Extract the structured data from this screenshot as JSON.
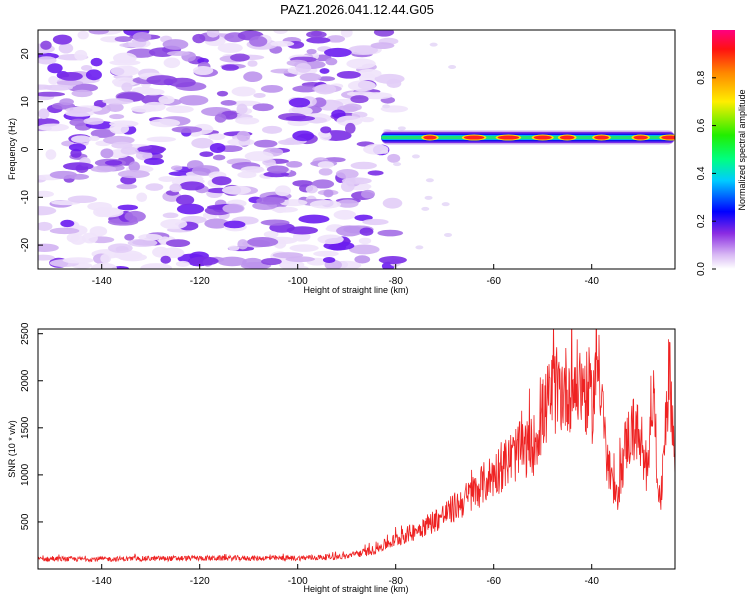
{
  "chart_data": [
    {
      "type": "heatmap",
      "title": "PAZ1.2026.041.12.44.G05",
      "xlabel": "Height of straight line (km)",
      "ylabel": "Frequency (Hz)",
      "xlim": [
        -153,
        -23
      ],
      "ylim": [
        -25,
        25
      ],
      "x_ticks": [
        -140,
        -120,
        -100,
        -80,
        -60,
        -40
      ],
      "y_ticks": [
        -20,
        -10,
        0,
        10,
        20
      ],
      "x_tick_labels": [
        "-140",
        "-120",
        "-100",
        "-80",
        "-60",
        "-40"
      ],
      "y_tick_labels": [
        "-20",
        "-10",
        "0",
        "10",
        "20"
      ],
      "signal_trace": {
        "x_start": -83,
        "x_end": -23,
        "frequency_hz": 2.5,
        "peak_heights_km": [
          -73,
          -64,
          -57,
          -50,
          -45,
          -38,
          -30,
          -24
        ]
      },
      "noise_region": {
        "x_start": -153,
        "x_end": -85,
        "y_range": [
          -25,
          25
        ]
      },
      "colorbar": {
        "label": "Normalized spectral amplitude",
        "range": [
          0.0,
          1.0
        ],
        "ticks": [
          0.0,
          0.2,
          0.4,
          0.6,
          0.8
        ],
        "tick_labels": [
          "0.0",
          "0.2",
          "0.4",
          "0.6",
          "0.8"
        ]
      }
    },
    {
      "type": "line",
      "xlabel": "Height of straight line (km)",
      "ylabel": "SNR (10 * v/v)",
      "xlim": [
        -153,
        -23
      ],
      "ylim": [
        0,
        2550
      ],
      "x_ticks": [
        -140,
        -120,
        -100,
        -80,
        -60,
        -40
      ],
      "y_ticks": [
        500,
        1000,
        1500,
        2000,
        2500
      ],
      "x_tick_labels": [
        "-140",
        "-120",
        "-100",
        "-80",
        "-60",
        "-40"
      ],
      "y_tick_labels": [
        "500",
        "1000",
        "1500",
        "2000",
        "2500"
      ],
      "color": "#ee2222",
      "envelope": {
        "x": [
          -153,
          -140,
          -120,
          -100,
          -90,
          -85,
          -80,
          -75,
          -70,
          -65,
          -60,
          -55,
          -52,
          -50,
          -48,
          -45,
          -42,
          -40,
          -38.5,
          -37,
          -35,
          -33,
          -31,
          -29,
          -27.5,
          -26,
          -25,
          -24,
          -23
        ],
        "y": [
          110,
          110,
          120,
          120,
          140,
          200,
          320,
          450,
          600,
          800,
          1050,
          1300,
          1350,
          1700,
          1950,
          2000,
          2050,
          1800,
          2400,
          1200,
          750,
          1400,
          1600,
          1000,
          2000,
          600,
          1700,
          2200,
          1100
        ]
      }
    }
  ]
}
